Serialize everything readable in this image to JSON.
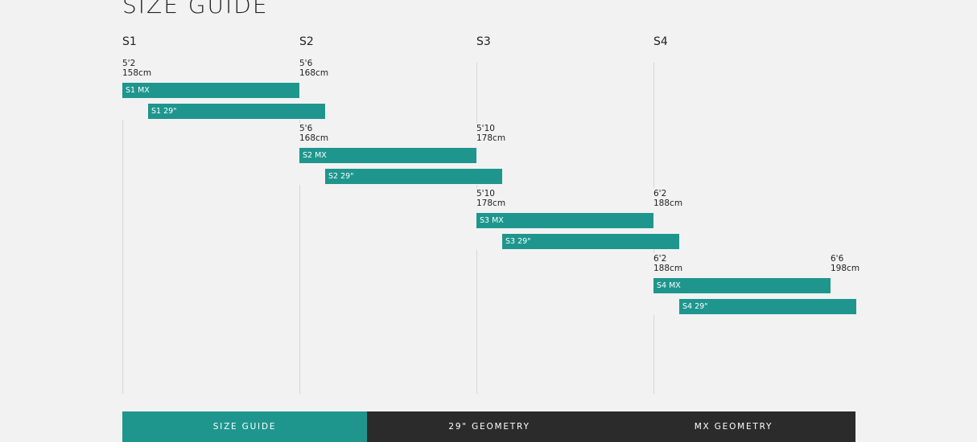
{
  "header": {
    "title": "SIZE GUIDE"
  },
  "columns": [
    "S1",
    "S2",
    "S3",
    "S4"
  ],
  "rows": [
    {
      "from": {
        "imperial": "5'2",
        "metric": "158cm"
      },
      "to": {
        "imperial": "5'6",
        "metric": "168cm"
      },
      "bars": [
        "S1 MX",
        "S1 29\""
      ]
    },
    {
      "from": {
        "imperial": "5'6",
        "metric": "168cm"
      },
      "to": {
        "imperial": "5'10",
        "metric": "178cm"
      },
      "bars": [
        "S2 MX",
        "S2 29\""
      ]
    },
    {
      "from": {
        "imperial": "5'10",
        "metric": "178cm"
      },
      "to": {
        "imperial": "6'2",
        "metric": "188cm"
      },
      "bars": [
        "S3 MX",
        "S3 29\""
      ]
    },
    {
      "from": {
        "imperial": "6'2",
        "metric": "188cm"
      },
      "to": {
        "imperial": "6'6",
        "metric": "198cm"
      },
      "bars": [
        "S4 MX",
        "S4 29\""
      ]
    }
  ],
  "tabs": [
    "SIZE GUIDE",
    "29\" GEOMETRY",
    "MX GEOMETRY"
  ]
}
